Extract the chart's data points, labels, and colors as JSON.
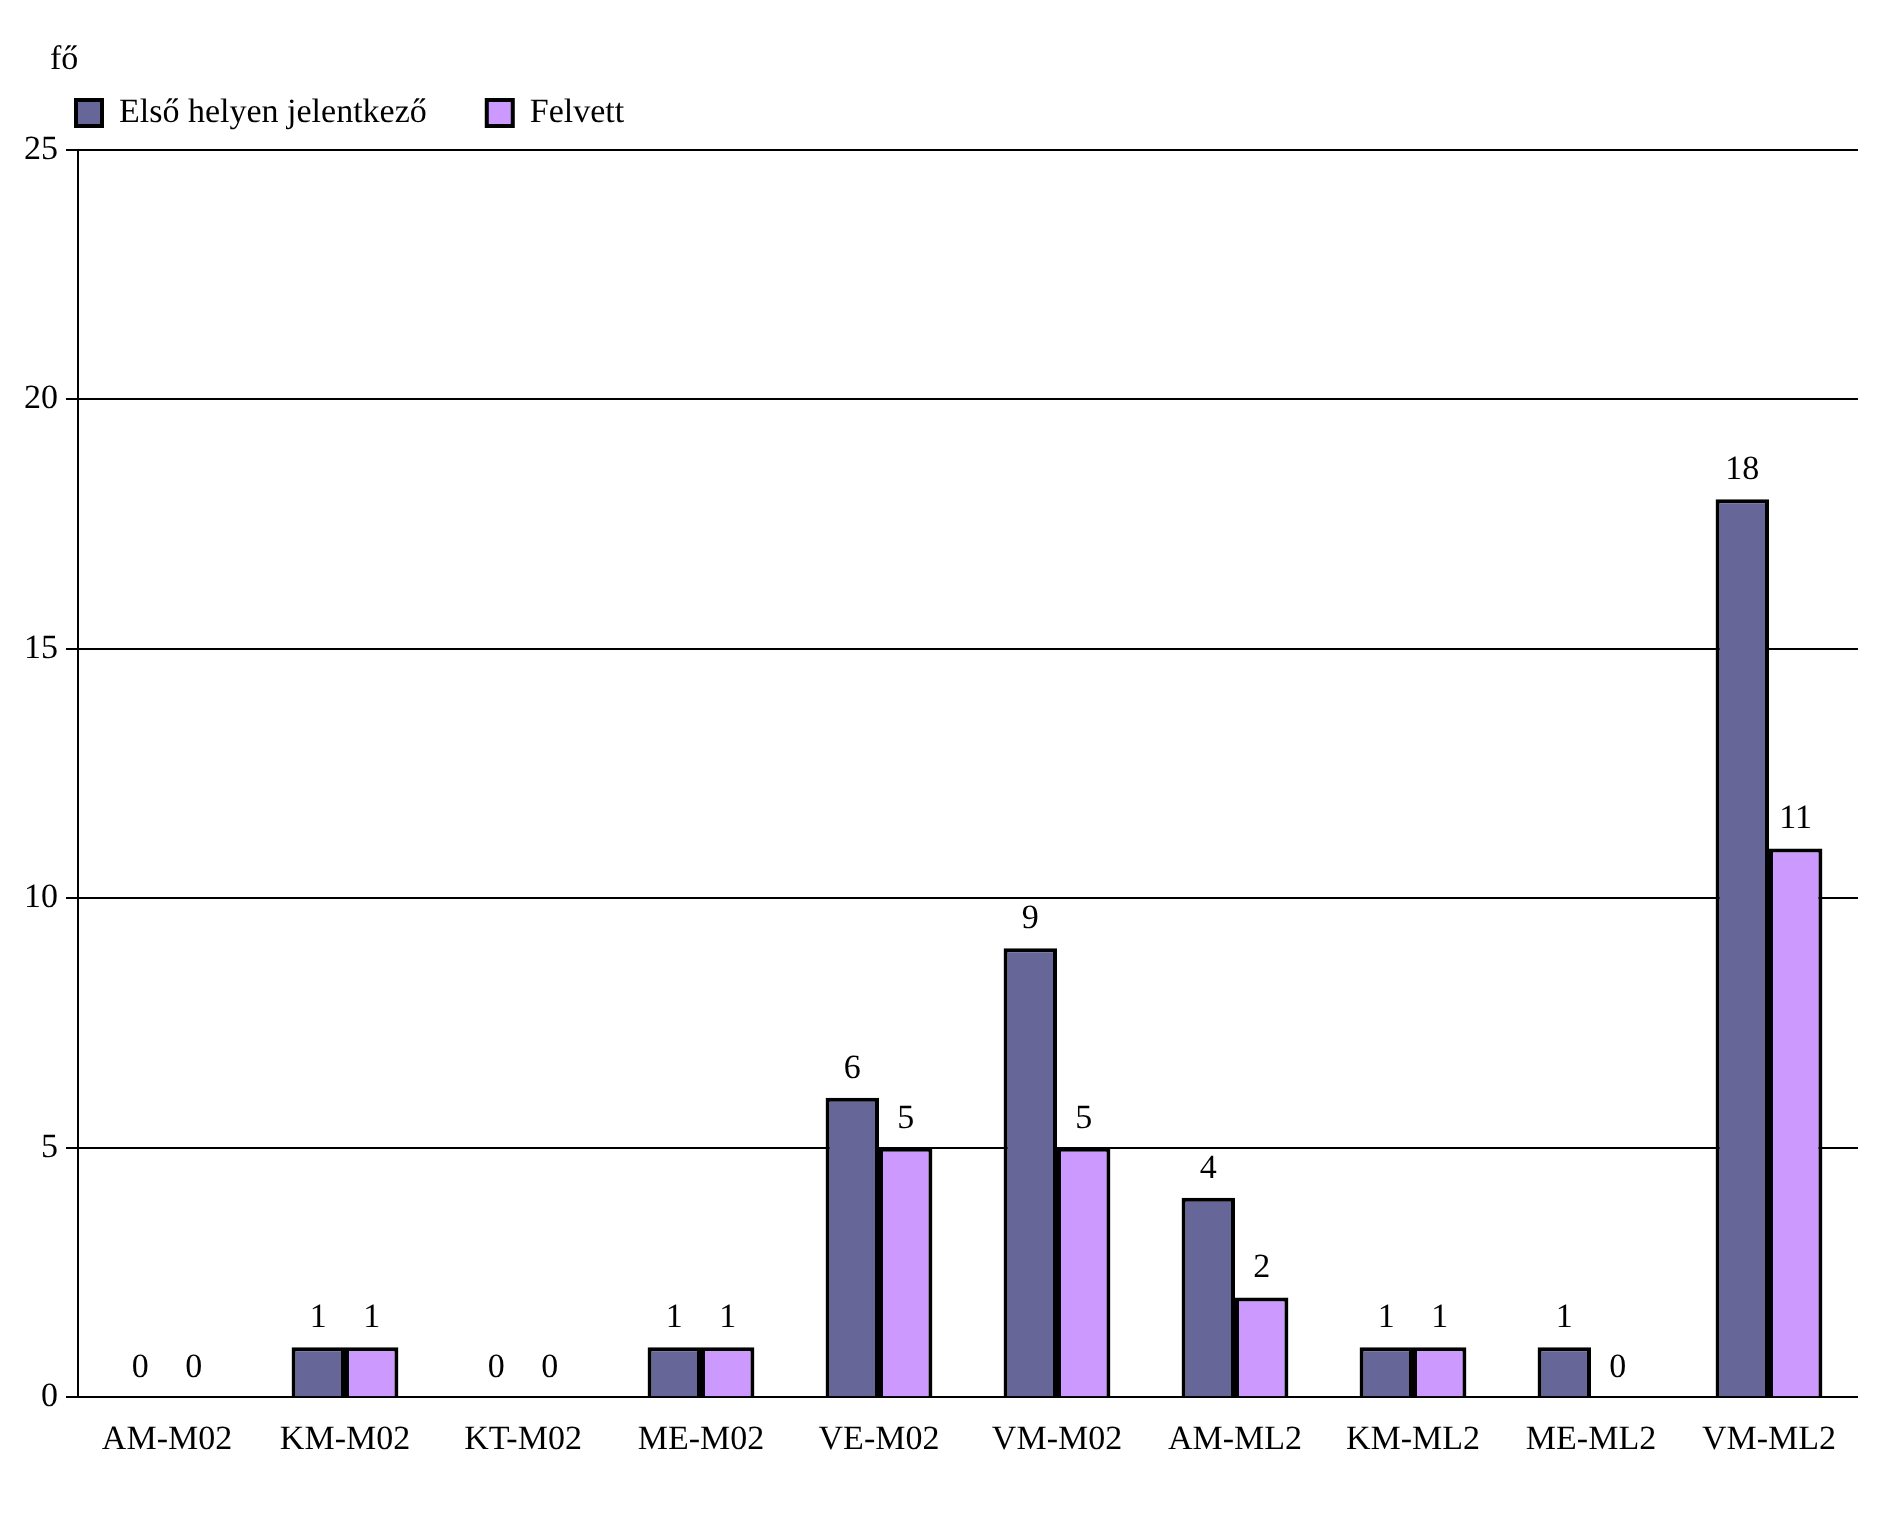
{
  "chart_data": {
    "type": "bar",
    "ylabel": "fő",
    "categories": [
      "AM-M02",
      "KM-M02",
      "KT-M02",
      "ME-M02",
      "VE-M02",
      "VM-M02",
      "AM-ML2",
      "KM-ML2",
      "ME-ML2",
      "VM-ML2"
    ],
    "series": [
      {
        "name": "Első helyen jelentkező",
        "color": "#666699",
        "values": [
          0,
          1,
          0,
          1,
          6,
          9,
          4,
          1,
          1,
          18
        ]
      },
      {
        "name": "Felvett",
        "color": "#cc99ff",
        "values": [
          0,
          1,
          0,
          1,
          5,
          5,
          2,
          1,
          0,
          11
        ]
      }
    ],
    "ylim": [
      0,
      25
    ],
    "yticks": [
      0,
      5,
      10,
      15,
      20,
      25
    ],
    "grid": "y",
    "legend": "top left",
    "data_labels": true
  }
}
